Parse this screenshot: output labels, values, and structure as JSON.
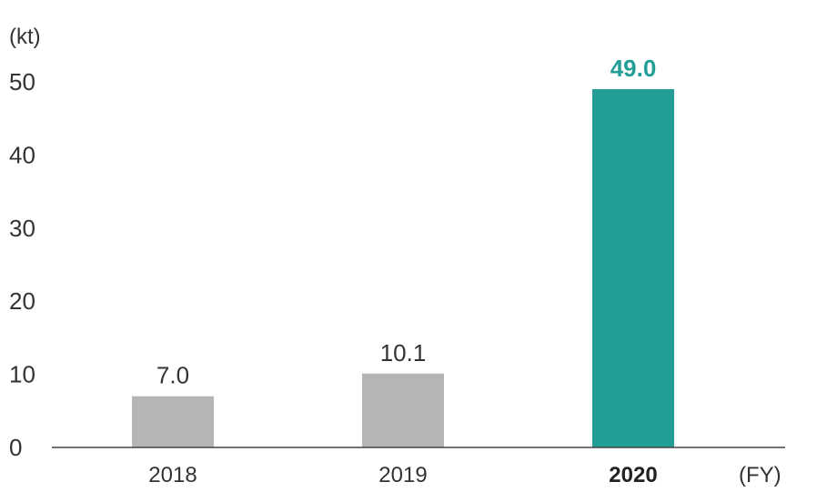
{
  "chart_data": {
    "type": "bar",
    "y_unit": "(kt)",
    "x_unit": "(FY)",
    "categories": [
      "2018",
      "2019",
      "2020"
    ],
    "values": [
      7.0,
      10.1,
      49.0
    ],
    "value_labels": [
      "7.0",
      "10.1",
      "49.0"
    ],
    "highlight_index": 2,
    "colors": {
      "default": "#b4b5b4",
      "highlight": "#239e97"
    },
    "yticks": [
      0,
      10,
      20,
      30,
      40,
      50
    ],
    "ylim": [
      0,
      50
    ],
    "grid": false
  }
}
